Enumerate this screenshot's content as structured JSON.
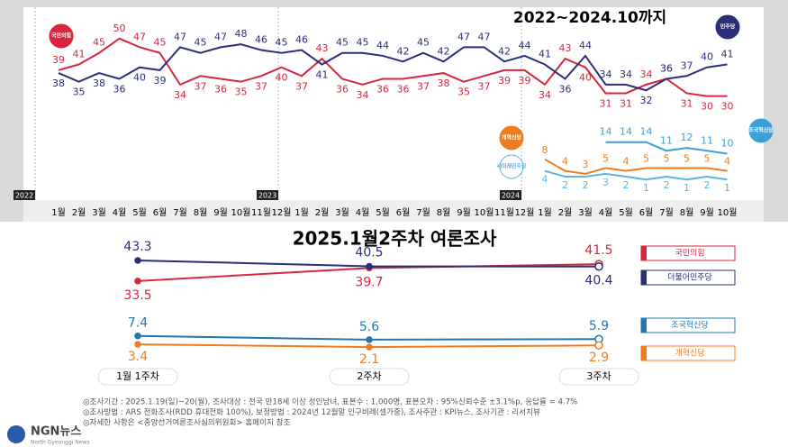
{
  "chart_data": [
    {
      "type": "line",
      "title": "2022~2024.10까지",
      "categories": [
        "1월",
        "2월",
        "3월",
        "4월",
        "5월",
        "6월",
        "7월",
        "8월",
        "9월",
        "10월",
        "11월",
        "12월",
        "1월",
        "2월",
        "3월",
        "4월",
        "5월",
        "6월",
        "7월",
        "8월",
        "9월",
        "10월",
        "11월",
        "12월",
        "1월",
        "2월",
        "3월",
        "4월",
        "5월",
        "6월",
        "7월",
        "8월",
        "9월",
        "10월"
      ],
      "year_markers": [
        "2022",
        "2023",
        "2024"
      ],
      "ylim": [
        -3,
        54
      ],
      "series": [
        {
          "name": "국민의힘",
          "color": "#d7263d",
          "values": [
            39,
            41,
            45,
            50,
            47,
            45,
            34,
            37,
            36,
            35,
            37,
            40,
            37,
            43,
            36,
            34,
            36,
            36,
            37,
            38,
            35,
            37,
            39,
            39,
            34,
            43,
            40,
            31,
            31,
            34,
            36,
            31,
            30,
            30
          ]
        },
        {
          "name": "민주당",
          "color": "#2a2f7a",
          "values": [
            38,
            35,
            38,
            36,
            40,
            39,
            47,
            45,
            47,
            48,
            46,
            45,
            46,
            41,
            45,
            45,
            44,
            42,
            45,
            42,
            47,
            47,
            42,
            44,
            41,
            36,
            44,
            34,
            34,
            32,
            36,
            37,
            40,
            41
          ]
        },
        {
          "name": "조국혁신당",
          "color": "#3aa0d8",
          "values": [
            null,
            null,
            null,
            null,
            null,
            null,
            null,
            null,
            null,
            null,
            null,
            null,
            null,
            null,
            null,
            null,
            null,
            null,
            null,
            null,
            null,
            null,
            null,
            null,
            null,
            null,
            null,
            14,
            14,
            14,
            11,
            12,
            11,
            10
          ]
        },
        {
          "name": "개혁신당",
          "color": "#ee7d22",
          "values": [
            null,
            null,
            null,
            null,
            null,
            null,
            null,
            null,
            null,
            null,
            null,
            null,
            null,
            null,
            null,
            null,
            null,
            null,
            null,
            null,
            null,
            null,
            null,
            null,
            8,
            4,
            3,
            5,
            4,
            5,
            5,
            5,
            5,
            4
          ]
        },
        {
          "name": "새미래민주당",
          "color": "#5bb5e0",
          "values": [
            null,
            null,
            null,
            null,
            null,
            null,
            null,
            null,
            null,
            null,
            null,
            null,
            null,
            null,
            null,
            null,
            null,
            null,
            null,
            null,
            null,
            null,
            null,
            null,
            4,
            2,
            2,
            3,
            2,
            1,
            2,
            1,
            2,
            1
          ]
        }
      ]
    },
    {
      "type": "line",
      "title": "2025.1월2주차 여론조사",
      "categories": [
        "1월 1주차",
        "2주차",
        "3주차"
      ],
      "ylim": [
        0,
        45
      ],
      "series": [
        {
          "name": "국민의힘",
          "color": "#d7263d",
          "values": [
            33.5,
            39.7,
            41.5
          ]
        },
        {
          "name": "더불어민주당",
          "color": "#2a2f7a",
          "values": [
            43.3,
            40.5,
            40.4
          ]
        },
        {
          "name": "조국혁신당",
          "color": "#1f78b4",
          "values": [
            7.4,
            5.6,
            5.9
          ]
        },
        {
          "name": "개혁신당",
          "color": "#ee7d22",
          "values": [
            3.4,
            2.1,
            2.9
          ]
        }
      ]
    }
  ],
  "notes": [
    "◎조사기간 : 2025.1.19(일)~20(월), 조사대상 : 전국 만18세 이상 성인남녀, 표본수 : 1,000명, 표본오차 : 95%신뢰수준 ±3.1%p, 응답률 = 4.7%",
    "◎조사방법 : ARS 전화조사(RDD 휴대전화 100%), 보정방법 : 2024년 12월말 인구비례(셀가중), 조사주관 : KPI뉴스, 조사기관 : 리서치뷰",
    "◎자세한 사항은 <중앙선거여론조사심의위원회> 홈페이지 참조"
  ],
  "logo": {
    "name": "NGN뉴스",
    "tagline": "North Gyeonggi News"
  }
}
